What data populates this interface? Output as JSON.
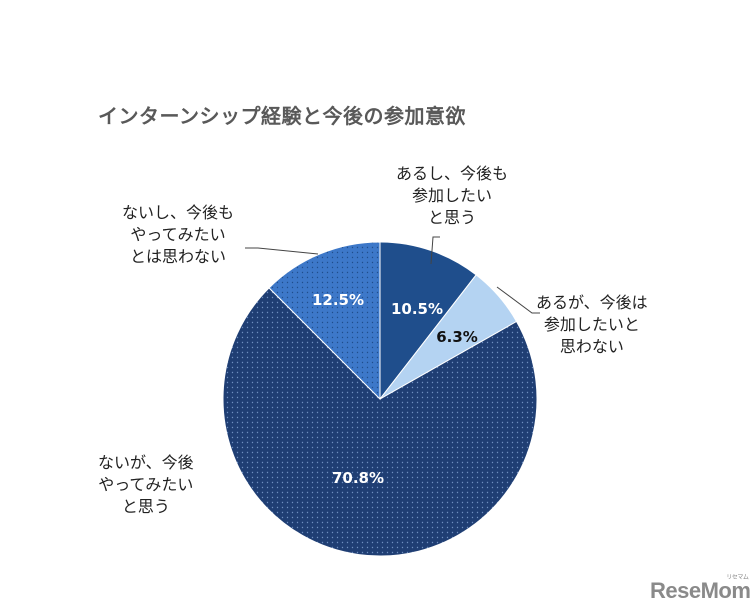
{
  "chart_data": {
    "type": "pie",
    "title": "インターンシップ経験と今後の参加意欲",
    "start_angle": "12 o'clock",
    "direction": "clockwise",
    "slices": [
      {
        "label": "あるし、今後も参加したいと思う",
        "label_lines": [
          "あるし、今後も",
          "参加したい",
          "と思う"
        ],
        "value": 10.5,
        "display": "10.5%",
        "color": "#1f4e8c",
        "pattern": "solid",
        "value_text_color": "#ffffff"
      },
      {
        "label": "あるが、今後は参加したいと思わない",
        "label_lines": [
          "あるが、今後は",
          "参加したいと",
          "思わない"
        ],
        "value": 6.3,
        "display": "6.3%",
        "color": "#b4d3f2",
        "pattern": "solid",
        "value_text_color": "#111111"
      },
      {
        "label": "ないが、今後やってみたいと思う",
        "label_lines": [
          "ないが、今後",
          "やってみたい",
          "と思う"
        ],
        "value": 70.8,
        "display": "70.8%",
        "color": "#1f3e73",
        "pattern": "dotted",
        "value_text_color": "#ffffff"
      },
      {
        "label": "ないし、今後もやってみたいとは思わない",
        "label_lines": [
          "ないし、今後も",
          "やってみたい",
          "とは思わない"
        ],
        "value": 12.5,
        "display": "12.5%",
        "color": "#3d78c9",
        "pattern": "dotted",
        "value_text_color": "#ffffff"
      }
    ],
    "legend": "none (callout labels)"
  },
  "watermark": {
    "text": "ReseMom",
    "subtext": "リセマム"
  }
}
